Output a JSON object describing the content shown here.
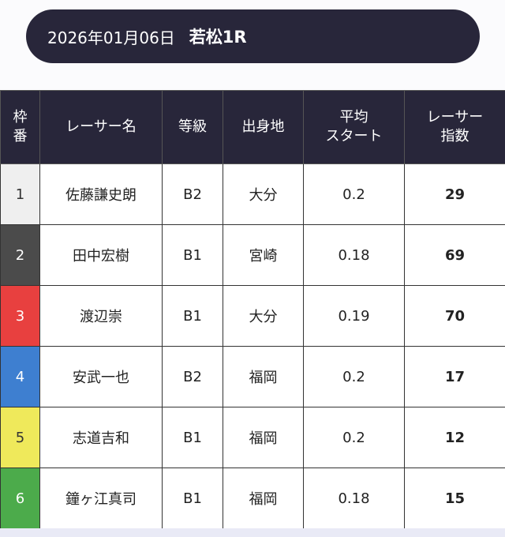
{
  "header": {
    "date": "2026年01月06日",
    "race": "若松1R"
  },
  "table": {
    "columns": [
      [
        "枠",
        "番"
      ],
      [
        "レーサー名"
      ],
      [
        "等級"
      ],
      [
        "出身地"
      ],
      [
        "平均",
        "スタート"
      ],
      [
        "レーサー",
        "指数"
      ]
    ],
    "frame_colors": [
      "#efefef",
      "#4b4b4b",
      "#e8403f",
      "#3e7fd0",
      "#efe95b",
      "#4cab4b"
    ],
    "frame_text_colors": [
      "#333333",
      "#ffffff",
      "#ffffff",
      "#ffffff",
      "#333333",
      "#ffffff"
    ],
    "rows": [
      [
        1,
        "佐藤謙史朗",
        "B2",
        "大分",
        0.2,
        29
      ],
      [
        2,
        "田中宏樹",
        "B1",
        "宮崎",
        0.18,
        69
      ],
      [
        3,
        "渡辺崇",
        "B1",
        "大分",
        0.19,
        70
      ],
      [
        4,
        "安武一也",
        "B2",
        "福岡",
        0.2,
        17
      ],
      [
        5,
        "志道吉和",
        "B1",
        "福岡",
        0.2,
        12
      ],
      [
        6,
        "鐘ヶ江真司",
        "B1",
        "福岡",
        0.18,
        15
      ]
    ]
  }
}
